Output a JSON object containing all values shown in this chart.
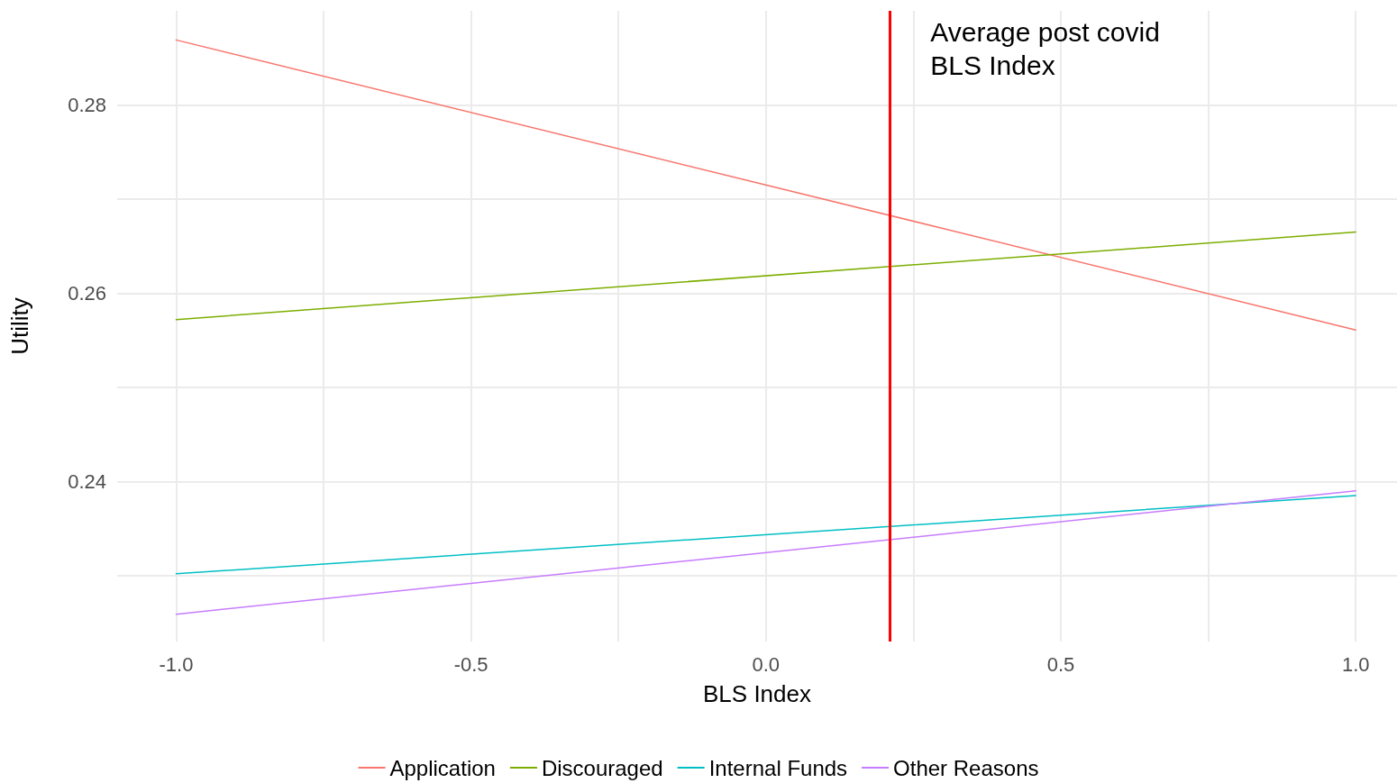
{
  "chart_data": {
    "type": "line",
    "xlabel": "BLS Index",
    "ylabel": "Utility",
    "x": [
      -1,
      1
    ],
    "series": [
      {
        "name": "Application",
        "color": "#f8766d",
        "values": [
          0.2869,
          0.2561
        ]
      },
      {
        "name": "Discouraged",
        "color": "#7cae00",
        "values": [
          0.2572,
          0.2665
        ]
      },
      {
        "name": "Internal Funds",
        "color": "#00bfc4",
        "values": [
          0.2302,
          0.2385
        ]
      },
      {
        "name": "Other Reasons",
        "color": "#c77cff",
        "values": [
          0.2259,
          0.239
        ]
      }
    ],
    "xlim": [
      -1.1,
      1.07
    ],
    "ylim": [
      0.223,
      0.29
    ],
    "xticks": [
      {
        "value": -1,
        "label": "-1.0"
      },
      {
        "value": -0.75,
        "label": null
      },
      -0.5,
      {
        "value": -0.25,
        "label": null
      },
      {
        "value": 0,
        "label": "0.0"
      },
      {
        "value": 0.25,
        "label": null
      },
      0.5,
      {
        "value": 0.75,
        "label": null
      },
      {
        "value": 1,
        "label": "1.0"
      }
    ],
    "yticks": [
      {
        "value": 0.23,
        "label": null
      },
      0.24,
      {
        "value": 0.25,
        "label": null
      },
      0.26,
      {
        "value": 0.27,
        "label": null
      },
      0.28
    ],
    "ref_lines": [
      {
        "axis": "x",
        "value": 0.21,
        "label": "Average post covid\nBLS Index",
        "color": "#ff0000"
      }
    ],
    "grid": true,
    "legend": "bottom",
    "marker": "none",
    "line_style": "solid"
  }
}
